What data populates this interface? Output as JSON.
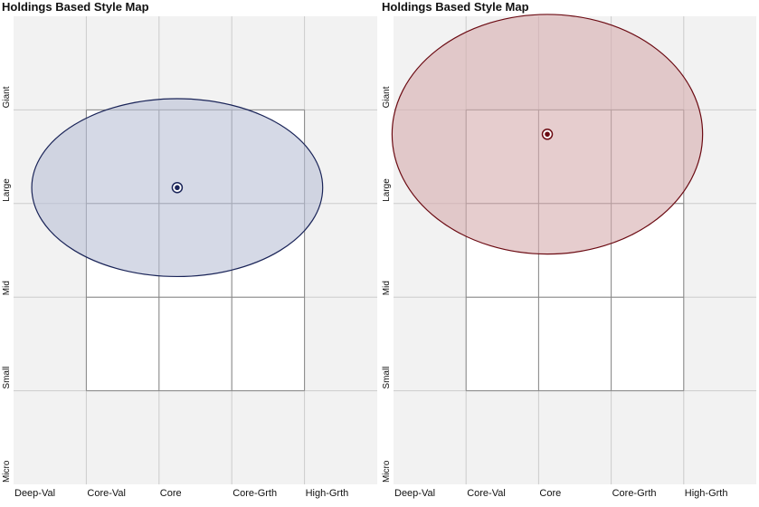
{
  "chart_data": [
    {
      "type": "scatter",
      "title": "Holdings Based Style Map",
      "x_tick_labels": [
        "Deep-Val",
        "Core-Val",
        "Core",
        "Core-Grth",
        "High-Grth"
      ],
      "y_tick_labels": [
        "Micro",
        "Small",
        "Mid",
        "Large",
        "Giant"
      ],
      "xlim": [
        0,
        5
      ],
      "ylim": [
        0,
        5
      ],
      "grid": true,
      "style_box": {
        "x": [
          1,
          4
        ],
        "y": [
          1,
          4
        ]
      },
      "centroid": {
        "x": 2.25,
        "y": 3.17
      },
      "ellipse": {
        "cx": 2.25,
        "cy": 3.17,
        "rx": 2.0,
        "ry": 0.95
      },
      "colors": {
        "stroke": "#1a2458",
        "fill": "#b9c0d6",
        "background": "#f2f2f2",
        "grid": "#cccccc",
        "box": "#888888"
      }
    },
    {
      "type": "scatter",
      "title": "Holdings Based Style Map",
      "x_tick_labels": [
        "Deep-Val",
        "Core-Val",
        "Core",
        "Core-Grth",
        "High-Grth"
      ],
      "y_tick_labels": [
        "Micro",
        "Small",
        "Mid",
        "Large",
        "Giant"
      ],
      "xlim": [
        0,
        5
      ],
      "ylim": [
        0,
        5
      ],
      "grid": true,
      "style_box": {
        "x": [
          1,
          4
        ],
        "y": [
          1,
          4
        ]
      },
      "centroid": {
        "x": 2.12,
        "y": 3.74
      },
      "ellipse": {
        "cx": 2.12,
        "cy": 3.74,
        "rx": 2.14,
        "ry": 1.28
      },
      "colors": {
        "stroke": "#6b0a12",
        "fill": "#d6abae",
        "background": "#f2f2f2",
        "grid": "#cccccc",
        "box": "#888888"
      }
    }
  ]
}
